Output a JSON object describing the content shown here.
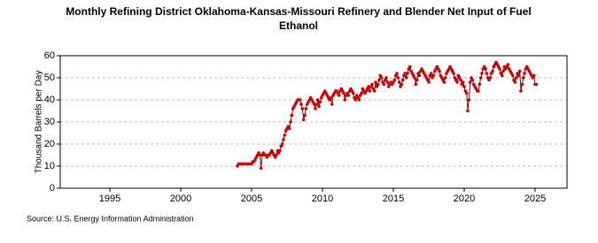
{
  "chart_data": {
    "type": "line",
    "title": "Monthly Refining District Oklahoma-Kansas-Missouri Refinery and Blender Net Input of Fuel",
    "subtitle": "Ethanol",
    "y_label": "Thousand Barrels per Day",
    "source": "Source: U.S. Energy Information Administration",
    "xlim": [
      1991.5,
      2027.25
    ],
    "xticks": [
      1995,
      2000,
      2005,
      2010,
      2015,
      2020,
      2025
    ],
    "ylim": [
      0,
      60
    ],
    "yticks": [
      0,
      10,
      20,
      30,
      40,
      50,
      60
    ],
    "grid": true,
    "x": [
      2004,
      2004.08,
      2004.17,
      2004.25,
      2004.33,
      2004.42,
      2004.5,
      2004.58,
      2004.67,
      2004.75,
      2004.83,
      2004.92,
      2005,
      2005.08,
      2005.17,
      2005.25,
      2005.33,
      2005.42,
      2005.5,
      2005.58,
      2005.67,
      2005.75,
      2005.83,
      2005.92,
      2006,
      2006.08,
      2006.17,
      2006.25,
      2006.33,
      2006.42,
      2006.5,
      2006.58,
      2006.67,
      2006.75,
      2006.83,
      2006.92,
      2007,
      2007.08,
      2007.17,
      2007.25,
      2007.33,
      2007.42,
      2007.5,
      2007.58,
      2007.67,
      2007.75,
      2007.83,
      2007.92,
      2008,
      2008.08,
      2008.17,
      2008.25,
      2008.33,
      2008.42,
      2008.5,
      2008.58,
      2008.67,
      2008.75,
      2008.83,
      2008.92,
      2009,
      2009.08,
      2009.17,
      2009.25,
      2009.33,
      2009.42,
      2009.5,
      2009.58,
      2009.67,
      2009.75,
      2009.83,
      2009.92,
      2010,
      2010.08,
      2010.17,
      2010.25,
      2010.33,
      2010.42,
      2010.5,
      2010.58,
      2010.67,
      2010.75,
      2010.83,
      2010.92,
      2011,
      2011.08,
      2011.17,
      2011.25,
      2011.33,
      2011.42,
      2011.5,
      2011.58,
      2011.67,
      2011.75,
      2011.83,
      2011.92,
      2012,
      2012.08,
      2012.17,
      2012.25,
      2012.33,
      2012.42,
      2012.5,
      2012.58,
      2012.67,
      2012.75,
      2012.83,
      2012.92,
      2013,
      2013.08,
      2013.17,
      2013.25,
      2013.33,
      2013.42,
      2013.5,
      2013.58,
      2013.67,
      2013.75,
      2013.83,
      2013.92,
      2014,
      2014.08,
      2014.17,
      2014.25,
      2014.33,
      2014.42,
      2014.5,
      2014.58,
      2014.67,
      2014.75,
      2014.83,
      2014.92,
      2015,
      2015.08,
      2015.17,
      2015.25,
      2015.33,
      2015.42,
      2015.5,
      2015.58,
      2015.67,
      2015.75,
      2015.83,
      2015.92,
      2016,
      2016.08,
      2016.17,
      2016.25,
      2016.33,
      2016.42,
      2016.5,
      2016.58,
      2016.67,
      2016.75,
      2016.83,
      2016.92,
      2017,
      2017.08,
      2017.17,
      2017.25,
      2017.33,
      2017.42,
      2017.5,
      2017.58,
      2017.67,
      2017.75,
      2017.83,
      2017.92,
      2018,
      2018.08,
      2018.17,
      2018.25,
      2018.33,
      2018.42,
      2018.5,
      2018.58,
      2018.67,
      2018.75,
      2018.83,
      2018.92,
      2019,
      2019.08,
      2019.17,
      2019.25,
      2019.33,
      2019.42,
      2019.5,
      2019.58,
      2019.67,
      2019.75,
      2019.83,
      2019.92,
      2020,
      2020.08,
      2020.17,
      2020.25,
      2020.33,
      2020.42,
      2020.5,
      2020.58,
      2020.67,
      2020.75,
      2020.83,
      2020.92,
      2021,
      2021.08,
      2021.17,
      2021.25,
      2021.33,
      2021.42,
      2021.5,
      2021.58,
      2021.67,
      2021.75,
      2021.83,
      2021.92,
      2022,
      2022.08,
      2022.17,
      2022.25,
      2022.33,
      2022.42,
      2022.5,
      2022.58,
      2022.67,
      2022.75,
      2022.83,
      2022.92,
      2023,
      2023.08,
      2023.17,
      2023.25,
      2023.33,
      2023.42,
      2023.5,
      2023.58,
      2023.67,
      2023.75,
      2023.83,
      2023.92,
      2024,
      2024.08,
      2024.17,
      2024.25,
      2024.33,
      2024.42,
      2024.5,
      2024.58,
      2024.67,
      2024.75,
      2024.83,
      2024.92,
      2025,
      2025.08
    ],
    "series": [
      {
        "color": "#cc0000",
        "values": [
          10,
          11,
          11,
          11,
          11,
          11,
          11,
          11,
          11,
          11,
          11,
          11,
          11,
          12,
          12,
          13,
          14,
          15,
          16,
          15,
          9,
          15,
          16,
          15,
          15,
          14,
          15,
          15,
          16,
          17,
          16,
          15,
          14,
          15,
          17,
          16,
          17,
          19,
          20,
          22,
          24,
          26,
          27,
          28,
          27,
          30,
          33,
          36,
          37,
          38,
          39,
          40,
          40,
          40,
          38,
          36,
          31,
          33,
          36,
          38,
          39,
          40,
          41,
          40,
          39,
          38,
          36,
          38,
          40,
          37,
          39,
          41,
          42,
          43,
          44,
          43,
          42,
          41,
          40,
          41,
          38,
          42,
          43,
          44,
          44,
          43,
          42,
          44,
          45,
          44,
          43,
          40,
          42,
          43,
          42,
          44,
          45,
          44,
          43,
          41,
          40,
          42,
          41,
          40,
          42,
          43,
          45,
          44,
          43,
          44,
          45,
          46,
          44,
          46,
          47,
          45,
          44,
          48,
          46,
          47,
          49,
          51,
          50,
          48,
          47,
          49,
          50,
          48,
          46,
          47,
          48,
          47,
          48,
          49,
          51,
          52,
          50,
          48,
          46,
          47,
          49,
          51,
          52,
          50,
          52,
          54,
          55,
          53,
          52,
          51,
          50,
          47,
          49,
          52,
          51,
          53,
          54,
          53,
          52,
          51,
          50,
          49,
          48,
          51,
          52,
          50,
          51,
          53,
          54,
          55,
          54,
          53,
          51,
          50,
          49,
          48,
          50,
          52,
          53,
          54,
          55,
          54,
          53,
          52,
          50,
          49,
          48,
          51,
          50,
          49,
          47,
          48,
          46,
          44,
          43,
          35,
          40,
          48,
          50,
          49,
          47,
          46,
          45,
          44,
          44,
          47,
          50,
          52,
          54,
          55,
          54,
          52,
          50,
          49,
          50,
          52,
          53,
          55,
          56,
          57,
          56,
          55,
          54,
          52,
          51,
          53,
          55,
          54,
          55,
          56,
          54,
          53,
          52,
          51,
          49,
          48,
          50,
          52,
          51,
          53,
          44,
          47,
          50,
          52,
          54,
          55,
          54,
          53,
          52,
          51,
          50,
          51,
          47,
          47
        ]
      }
    ]
  }
}
